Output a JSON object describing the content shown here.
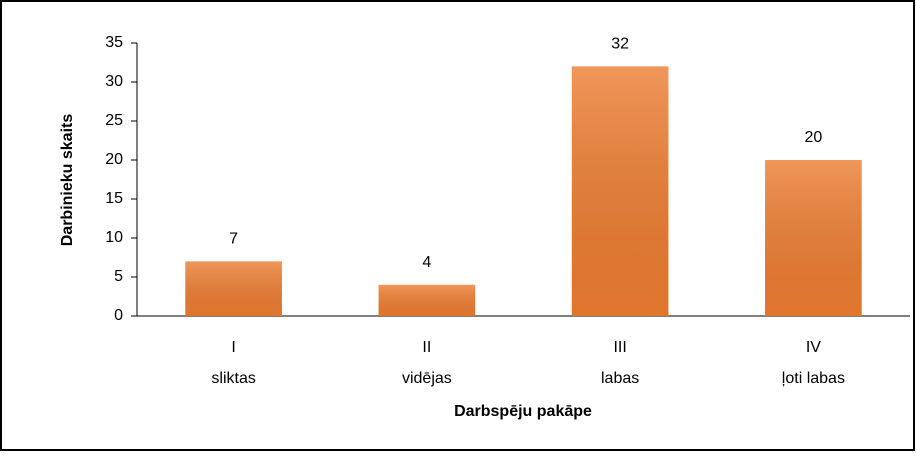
{
  "chart_data": {
    "type": "bar",
    "categories": [
      "I\nsliktas",
      "II\nvidējas",
      "III\nlabas",
      "IV\nļoti labas"
    ],
    "values": [
      7,
      4,
      32,
      20
    ],
    "color": "#ed7d31",
    "ylim": [
      0,
      35
    ],
    "yticks": [
      0,
      5,
      10,
      15,
      20,
      25,
      30,
      35
    ],
    "ylabel": "Darbinieku skaits",
    "xlabel": "Darbspēju pakāpe"
  }
}
